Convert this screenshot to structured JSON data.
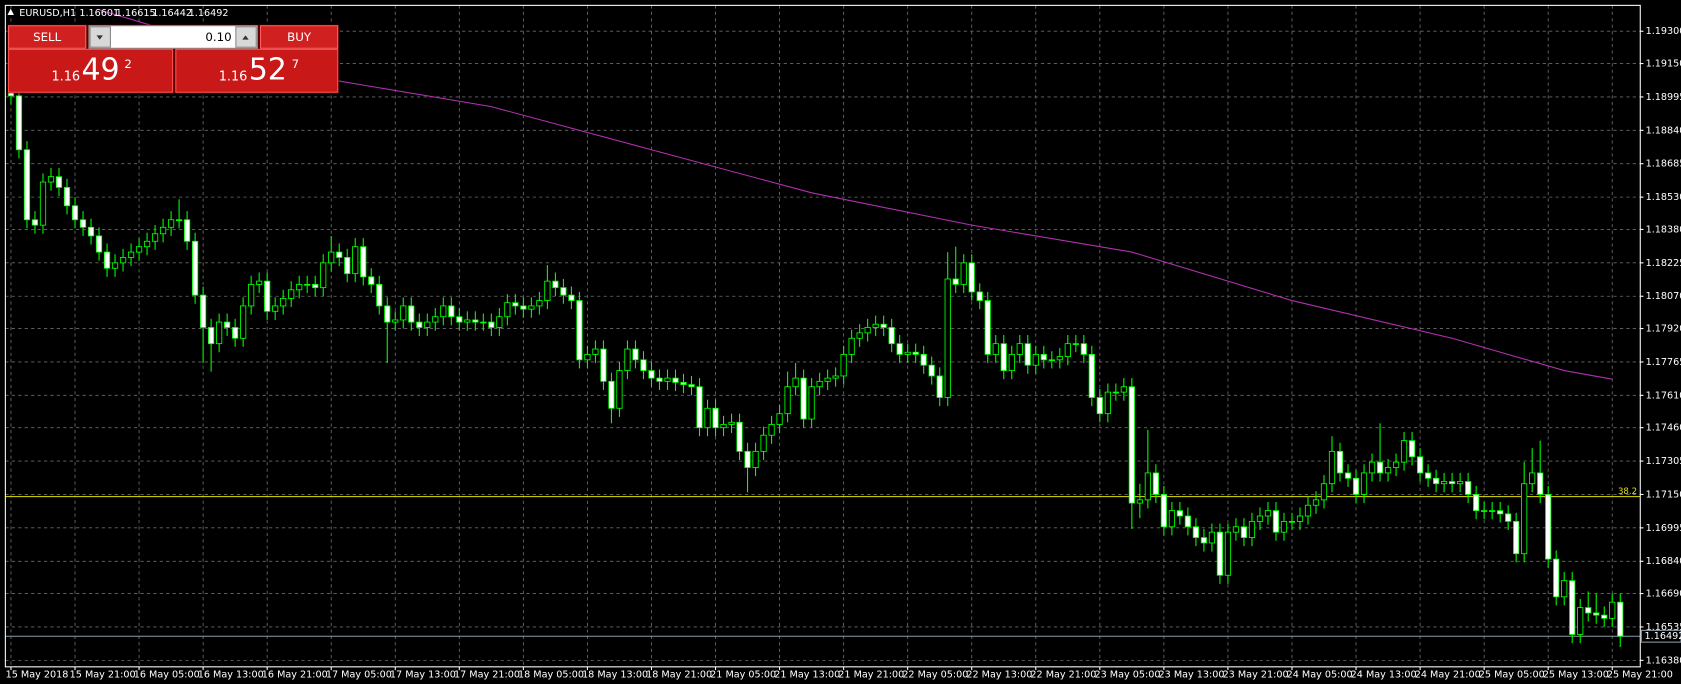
{
  "header": {
    "symbol": "EURUSD,H1",
    "ohlc": [
      1.16601,
      1.16615,
      1.16442,
      1.16492
    ]
  },
  "trade_panel": {
    "sell_label": "SELL",
    "buy_label": "BUY",
    "lot": "0.10",
    "sell_price": {
      "prefix": "1.16",
      "pips": "49",
      "fraction": "2"
    },
    "buy_price": {
      "prefix": "1.16",
      "pips": "52",
      "fraction": "7"
    }
  },
  "chart_data": {
    "type": "candlestick",
    "open": [
      1.191,
      1.19,
      1.1875,
      1.18425,
      1.184,
      1.186,
      1.18625,
      1.18575,
      1.1849,
      1.18425,
      1.1839,
      1.1835,
      1.18275,
      1.182,
      1.18225,
      1.1825,
      1.18275,
      1.183,
      1.18325,
      1.1836,
      1.1839,
      1.18425,
      1.18425,
      1.18325,
      1.18075,
      1.17925,
      1.1785,
      1.1795,
      1.17925,
      1.17875,
      1.18025,
      1.18125,
      1.1814,
      1.18,
      1.18025,
      1.1806,
      1.181,
      1.18125,
      1.18125,
      1.1811,
      1.18225,
      1.18275,
      1.1825,
      1.18175,
      1.183,
      1.1816,
      1.18125,
      1.18025,
      1.1795,
      1.1796,
      1.18025,
      1.1795,
      1.17925,
      1.1795,
      1.17975,
      1.18025,
      1.17975,
      1.1795,
      1.1796,
      1.1795,
      1.1795,
      1.17925,
      1.17975,
      1.1804,
      1.18025,
      1.1801,
      1.18025,
      1.1805,
      1.1814,
      1.1811,
      1.18075,
      1.1805,
      1.17775,
      1.178,
      1.17825,
      1.17675,
      1.1755,
      1.17725,
      1.17825,
      1.17775,
      1.17725,
      1.1769,
      1.17675,
      1.1769,
      1.1767,
      1.1766,
      1.1765,
      1.1746,
      1.1755,
      1.1746,
      1.17475,
      1.17485,
      1.1735,
      1.17275,
      1.1735,
      1.17425,
      1.17475,
      1.17525,
      1.1765,
      1.1769,
      1.175,
      1.1765,
      1.17675,
      1.1769,
      1.177,
      1.178,
      1.17875,
      1.179,
      1.17925,
      1.1794,
      1.17925,
      1.1785,
      1.178,
      1.1781,
      1.178,
      1.1775,
      1.177,
      1.176,
      1.1815,
      1.18125,
      1.18225,
      1.1809,
      1.1805,
      1.178,
      1.1785,
      1.17725,
      1.178,
      1.1785,
      1.1775,
      1.178,
      1.17775,
      1.17775,
      1.1779,
      1.1785,
      1.1785,
      1.178,
      1.176,
      1.17525,
      1.17625,
      1.17625,
      1.1765,
      1.1711,
      1.17125,
      1.1725,
      1.1715,
      1.17,
      1.17075,
      1.1705,
      1.17,
      1.1695,
      1.16925,
      1.16975,
      1.16775,
      1.16975,
      1.17,
      1.1695,
      1.17025,
      1.1705,
      1.17075,
      1.16975,
      1.17025,
      1.17025,
      1.1705,
      1.171,
      1.17125,
      1.172,
      1.1735,
      1.1725,
      1.17225,
      1.1715,
      1.1725,
      1.173,
      1.1725,
      1.17275,
      1.173,
      1.174,
      1.17325,
      1.1725,
      1.17225,
      1.172,
      1.1721,
      1.172,
      1.1721,
      1.1715,
      1.17075,
      1.17075,
      1.17075,
      1.1706,
      1.17025,
      1.16875,
      1.172,
      1.1725,
      1.1715,
      1.1685,
      1.16675,
      1.1675,
      1.165,
      1.16625,
      1.166,
      1.1659,
      1.16575,
      1.1665
    ],
    "high": [
      1.1914,
      1.1904,
      1.1879,
      1.18465,
      1.1864,
      1.18665,
      1.18665,
      1.18615,
      1.1853,
      1.18465,
      1.1843,
      1.1839,
      1.18315,
      1.18265,
      1.1829,
      1.18315,
      1.1834,
      1.18365,
      1.184,
      1.1843,
      1.18465,
      1.1852,
      1.18465,
      1.18365,
      1.18115,
      1.17965,
      1.1799,
      1.1799,
      1.17965,
      1.18065,
      1.18165,
      1.1818,
      1.1818,
      1.18065,
      1.181,
      1.1814,
      1.18165,
      1.18165,
      1.18165,
      1.18265,
      1.1835,
      1.18315,
      1.1829,
      1.1834,
      1.1834,
      1.182,
      1.18165,
      1.18065,
      1.18,
      1.18065,
      1.18065,
      1.1799,
      1.1799,
      1.18015,
      1.18065,
      1.18065,
      1.18015,
      1.18,
      1.18,
      1.1799,
      1.1799,
      1.18015,
      1.1808,
      1.1808,
      1.18065,
      1.18065,
      1.1809,
      1.18215,
      1.1818,
      1.1815,
      1.18115,
      1.1809,
      1.1784,
      1.17865,
      1.17865,
      1.17715,
      1.17765,
      1.17865,
      1.17865,
      1.17815,
      1.17765,
      1.1773,
      1.1773,
      1.1773,
      1.1771,
      1.177,
      1.1769,
      1.1759,
      1.1759,
      1.17515,
      1.17525,
      1.17525,
      1.1739,
      1.1739,
      1.17465,
      1.17515,
      1.17565,
      1.1772,
      1.1776,
      1.1773,
      1.1769,
      1.17715,
      1.1773,
      1.1774,
      1.1784,
      1.17915,
      1.1794,
      1.17965,
      1.1798,
      1.1798,
      1.17965,
      1.1789,
      1.1785,
      1.1785,
      1.1784,
      1.1779,
      1.1774,
      1.18275,
      1.183,
      1.18265,
      1.18265,
      1.1813,
      1.1809,
      1.1789,
      1.1789,
      1.1784,
      1.1789,
      1.1789,
      1.1784,
      1.1784,
      1.17815,
      1.1783,
      1.1789,
      1.1789,
      1.1789,
      1.1784,
      1.1764,
      1.17665,
      1.17665,
      1.1769,
      1.1769,
      1.172,
      1.1745,
      1.1729,
      1.1719,
      1.17115,
      1.17115,
      1.1709,
      1.1704,
      1.1699,
      1.17015,
      1.17015,
      1.17015,
      1.1704,
      1.1704,
      1.17065,
      1.1709,
      1.17115,
      1.17115,
      1.17065,
      1.17065,
      1.1709,
      1.1714,
      1.17165,
      1.1724,
      1.1742,
      1.1739,
      1.1729,
      1.17265,
      1.1729,
      1.1734,
      1.1748,
      1.17315,
      1.1734,
      1.1744,
      1.1744,
      1.17365,
      1.1729,
      1.17265,
      1.1725,
      1.1725,
      1.1725,
      1.1725,
      1.1719,
      1.17115,
      1.17115,
      1.17115,
      1.171,
      1.17065,
      1.173,
      1.17365,
      1.174,
      1.1719,
      1.1689,
      1.1679,
      1.1679,
      1.16665,
      1.167,
      1.1669,
      1.1663,
      1.1669,
      1.1669
    ],
    "low": [
      1.1896,
      1.1871,
      1.18385,
      1.1836,
      1.1836,
      1.1856,
      1.18535,
      1.1845,
      1.18385,
      1.1835,
      1.1831,
      1.18235,
      1.1816,
      1.1816,
      1.18185,
      1.1821,
      1.18235,
      1.1826,
      1.18285,
      1.1832,
      1.1835,
      1.18385,
      1.18285,
      1.18035,
      1.1776,
      1.1772,
      1.1781,
      1.17885,
      1.17835,
      1.17835,
      1.17985,
      1.18085,
      1.1796,
      1.1796,
      1.17985,
      1.1802,
      1.1806,
      1.18085,
      1.1807,
      1.1807,
      1.18185,
      1.1821,
      1.18135,
      1.18135,
      1.1812,
      1.18085,
      1.17985,
      1.1776,
      1.1791,
      1.1792,
      1.1791,
      1.17885,
      1.17885,
      1.1791,
      1.17935,
      1.17935,
      1.1791,
      1.1791,
      1.1791,
      1.1791,
      1.17885,
      1.17885,
      1.17935,
      1.17985,
      1.1797,
      1.1797,
      1.17985,
      1.1801,
      1.1807,
      1.18035,
      1.1801,
      1.17735,
      1.17735,
      1.1776,
      1.17635,
      1.1748,
      1.1751,
      1.17685,
      1.17735,
      1.17685,
      1.1765,
      1.17635,
      1.17635,
      1.1763,
      1.1762,
      1.1761,
      1.1742,
      1.1742,
      1.1742,
      1.1742,
      1.17435,
      1.1731,
      1.1716,
      1.17235,
      1.1731,
      1.17385,
      1.17435,
      1.17485,
      1.1761,
      1.1746,
      1.1746,
      1.1761,
      1.17635,
      1.1765,
      1.1766,
      1.1776,
      1.17835,
      1.1786,
      1.17885,
      1.17885,
      1.1781,
      1.1776,
      1.1776,
      1.1776,
      1.1771,
      1.1766,
      1.1756,
      1.1756,
      1.18085,
      1.18085,
      1.1805,
      1.1801,
      1.1776,
      1.1776,
      1.17685,
      1.17685,
      1.1776,
      1.1771,
      1.1771,
      1.17735,
      1.17735,
      1.17735,
      1.1775,
      1.1781,
      1.1776,
      1.1756,
      1.17485,
      1.17485,
      1.17585,
      1.17585,
      1.1699,
      1.1704,
      1.17085,
      1.1711,
      1.1696,
      1.1696,
      1.1701,
      1.1696,
      1.1691,
      1.16885,
      1.16885,
      1.16735,
      1.16735,
      1.16935,
      1.1691,
      1.1691,
      1.16985,
      1.1701,
      1.16935,
      1.16935,
      1.16985,
      1.16985,
      1.1701,
      1.1706,
      1.17085,
      1.1716,
      1.1721,
      1.17185,
      1.1711,
      1.1711,
      1.1721,
      1.1721,
      1.1721,
      1.17235,
      1.1726,
      1.17285,
      1.1721,
      1.17185,
      1.1716,
      1.1716,
      1.1716,
      1.1716,
      1.1711,
      1.17035,
      1.17035,
      1.17035,
      1.1702,
      1.16985,
      1.16835,
      1.16835,
      1.1716,
      1.1711,
      1.1681,
      1.16635,
      1.16635,
      1.1646,
      1.1646,
      1.1656,
      1.1655,
      1.16535,
      1.16535,
      1.16442
    ],
    "close": [
      1.19,
      1.1875,
      1.18425,
      1.184,
      1.186,
      1.18625,
      1.18575,
      1.1849,
      1.18425,
      1.1839,
      1.1835,
      1.18275,
      1.182,
      1.18225,
      1.1825,
      1.18275,
      1.183,
      1.18325,
      1.1836,
      1.1839,
      1.18425,
      1.18425,
      1.18325,
      1.18075,
      1.17925,
      1.1785,
      1.1795,
      1.17925,
      1.17875,
      1.18025,
      1.18125,
      1.1814,
      1.18,
      1.18025,
      1.1806,
      1.181,
      1.18125,
      1.18125,
      1.1811,
      1.18225,
      1.18275,
      1.1825,
      1.18175,
      1.183,
      1.1816,
      1.18125,
      1.18025,
      1.1795,
      1.1796,
      1.18025,
      1.1795,
      1.17925,
      1.1795,
      1.17975,
      1.18025,
      1.17975,
      1.1795,
      1.1796,
      1.1795,
      1.1795,
      1.17925,
      1.17975,
      1.1804,
      1.18025,
      1.1801,
      1.18025,
      1.1805,
      1.1814,
      1.1811,
      1.18075,
      1.1805,
      1.17775,
      1.178,
      1.17825,
      1.17675,
      1.1755,
      1.17725,
      1.17825,
      1.17775,
      1.17725,
      1.1769,
      1.17675,
      1.1769,
      1.1767,
      1.1766,
      1.1765,
      1.1746,
      1.1755,
      1.1746,
      1.17475,
      1.17485,
      1.1735,
      1.17275,
      1.1735,
      1.17425,
      1.17475,
      1.17525,
      1.1765,
      1.1769,
      1.175,
      1.1765,
      1.17675,
      1.1769,
      1.177,
      1.178,
      1.17875,
      1.179,
      1.17925,
      1.1794,
      1.17925,
      1.1785,
      1.178,
      1.1781,
      1.178,
      1.1775,
      1.177,
      1.176,
      1.1815,
      1.18125,
      1.18225,
      1.1809,
      1.1805,
      1.178,
      1.1785,
      1.17725,
      1.178,
      1.1785,
      1.1775,
      1.178,
      1.17775,
      1.17775,
      1.1779,
      1.1785,
      1.1785,
      1.178,
      1.176,
      1.17525,
      1.17625,
      1.17625,
      1.1765,
      1.1711,
      1.17125,
      1.1725,
      1.1715,
      1.17,
      1.17075,
      1.1705,
      1.17,
      1.1695,
      1.16925,
      1.16975,
      1.16775,
      1.16975,
      1.17,
      1.1695,
      1.17025,
      1.1705,
      1.17075,
      1.16975,
      1.17025,
      1.17025,
      1.1705,
      1.171,
      1.17125,
      1.172,
      1.1735,
      1.1725,
      1.17225,
      1.1715,
      1.1725,
      1.173,
      1.1725,
      1.17275,
      1.173,
      1.174,
      1.17325,
      1.1725,
      1.17225,
      1.172,
      1.1721,
      1.172,
      1.1721,
      1.1715,
      1.17075,
      1.17075,
      1.17075,
      1.1706,
      1.17025,
      1.16875,
      1.172,
      1.1725,
      1.1715,
      1.1685,
      1.16675,
      1.1675,
      1.165,
      1.16625,
      1.166,
      1.1659,
      1.16575,
      1.1665,
      1.16492
    ],
    "xlim": [
      -0.7,
      203.5
    ],
    "ylim": [
      1.1635,
      1.1942
    ],
    "yticks": [
      {
        "value": 1.193,
        "label": "1.19300"
      },
      {
        "value": 1.1915,
        "label": "1.19150"
      },
      {
        "value": 1.18995,
        "label": "1.18995"
      },
      {
        "value": 1.1884,
        "label": "1.18840"
      },
      {
        "value": 1.18685,
        "label": "1.18685"
      },
      {
        "value": 1.1853,
        "label": "1.18530"
      },
      {
        "value": 1.1838,
        "label": "1.18380"
      },
      {
        "value": 1.18225,
        "label": "1.18225"
      },
      {
        "value": 1.1807,
        "label": "1.18070"
      },
      {
        "value": 1.1792,
        "label": "1.17920"
      },
      {
        "value": 1.17765,
        "label": "1.17765"
      },
      {
        "value": 1.1761,
        "label": "1.17610"
      },
      {
        "value": 1.1746,
        "label": "1.17460"
      },
      {
        "value": 1.17305,
        "label": "1.17305"
      },
      {
        "value": 1.1715,
        "label": "1.17150"
      },
      {
        "value": 1.16995,
        "label": "1.16995"
      },
      {
        "value": 1.1684,
        "label": "1.16840"
      },
      {
        "value": 1.1669,
        "label": "1.16690"
      },
      {
        "value": 1.16535,
        "label": "1.16535"
      },
      {
        "value": 1.1638,
        "label": "1.16380"
      }
    ],
    "xticks": [
      {
        "value": 0,
        "label": "15 May 2018"
      },
      {
        "value": 8,
        "label": "15 May 21:00"
      },
      {
        "value": 16,
        "label": "16 May 05:00"
      },
      {
        "value": 24,
        "label": "16 May 13:00"
      },
      {
        "value": 32,
        "label": "16 May 21:00"
      },
      {
        "value": 40,
        "label": "17 May 05:00"
      },
      {
        "value": 48,
        "label": "17 May 13:00"
      },
      {
        "value": 56,
        "label": "17 May 21:00"
      },
      {
        "value": 64,
        "label": "18 May 05:00"
      },
      {
        "value": 72,
        "label": "18 May 13:00"
      },
      {
        "value": 80,
        "label": "18 May 21:00"
      },
      {
        "value": 88,
        "label": "21 May 05:00"
      },
      {
        "value": 96,
        "label": "21 May 13:00"
      },
      {
        "value": 104,
        "label": "21 May 21:00"
      },
      {
        "value": 112,
        "label": "22 May 05:00"
      },
      {
        "value": 120,
        "label": "22 May 13:00"
      },
      {
        "value": 128,
        "label": "22 May 21:00"
      },
      {
        "value": 136,
        "label": "23 May 05:00"
      },
      {
        "value": 144,
        "label": "23 May 13:00"
      },
      {
        "value": 152,
        "label": "23 May 21:00"
      },
      {
        "value": 160,
        "label": "24 May 05:00"
      },
      {
        "value": 168,
        "label": "24 May 13:00"
      },
      {
        "value": 176,
        "label": "24 May 21:00"
      },
      {
        "value": 184,
        "label": "25 May 05:00"
      },
      {
        "value": 192,
        "label": "25 May 13:00"
      },
      {
        "value": 200,
        "label": "25 May 21:00"
      }
    ],
    "grid": true,
    "bull_color": "#000000",
    "bear_color": "#ffffff",
    "outline_color": "#00ff00",
    "moving_average": {
      "color": "#b030b0",
      "x": [
        11,
        40,
        60,
        80,
        100,
        120,
        140,
        160,
        180,
        194,
        200
      ],
      "values": [
        1.194,
        1.19075,
        1.1895,
        1.1875,
        1.1855,
        1.184,
        1.18275,
        1.1805,
        1.17875,
        1.17725,
        1.17685
      ]
    },
    "level": {
      "value": 1.1714,
      "label": "38.2",
      "color": "#e0e000"
    },
    "bid": {
      "value": 1.16492,
      "label": "1.16492",
      "color": "#8a9aa8"
    }
  }
}
